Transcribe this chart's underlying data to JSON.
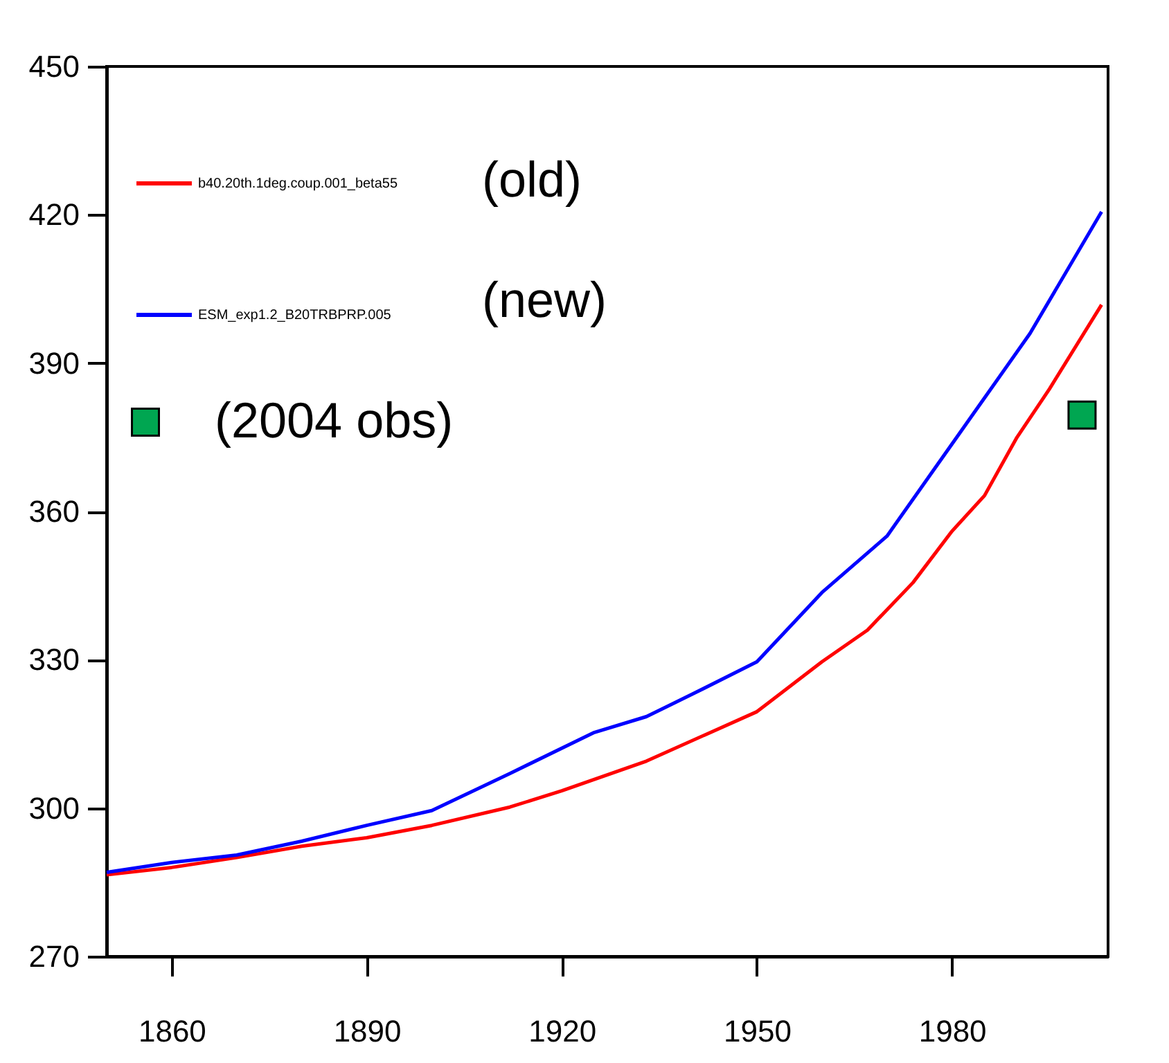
{
  "chart_data": {
    "type": "line",
    "xlim": [
      1850,
      2004
    ],
    "xticks": [
      1860,
      1890,
      1920,
      1950,
      1980
    ],
    "ylim": [
      270,
      450
    ],
    "yticks": [
      270,
      300,
      330,
      360,
      390,
      420,
      450
    ],
    "grid": false,
    "legend": "top left",
    "marker": "none",
    "annotations": [
      "(old)",
      "(new)"
    ],
    "series": [
      {
        "name": "b40.20th.1deg.coup.001_beta55",
        "color": "#ff0000",
        "x": [
          1850,
          1860,
          1870,
          1880,
          1890,
          1900,
          1912,
          1920,
          1933,
          1942,
          1950,
          1960,
          1967,
          1974,
          1980,
          1985,
          1990,
          1995,
          2003
        ],
        "values": [
          286.5,
          288,
          290,
          292.3,
          294,
          296.5,
          300.2,
          303.5,
          309.5,
          314.8,
          319.5,
          329.6,
          336,
          345.6,
          356,
          363.2,
          375,
          384.8,
          401.8
        ]
      },
      {
        "name": "ESM_exp1.2_B20TRBPRP.005",
        "color": "#0000ff",
        "x": [
          1850,
          1860,
          1870,
          1880,
          1890,
          1900,
          1912,
          1925,
          1933,
          1940,
          1950,
          1960,
          1970,
          1981,
          1992,
          2003
        ],
        "values": [
          287,
          289,
          290.5,
          293.3,
          296.5,
          299.5,
          307,
          315.3,
          318.5,
          323,
          329.6,
          343.6,
          355,
          375.5,
          396,
          420.6
        ]
      },
      {
        "name": "(2004 obs)",
        "type": "scatter",
        "marker": "square",
        "color": "#00a651",
        "x": [
          2000
        ],
        "values": [
          379.5
        ]
      }
    ]
  }
}
